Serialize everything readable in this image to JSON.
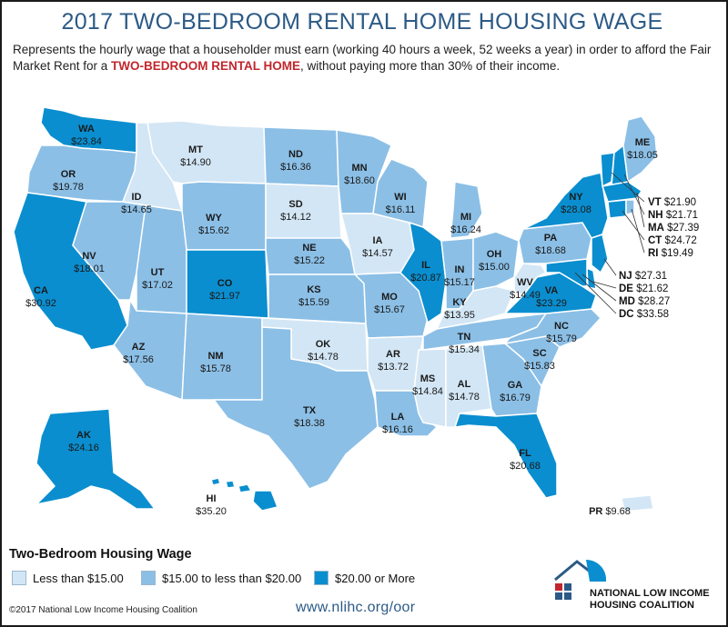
{
  "title": "2017 TWO-BEDROOM RENTAL HOME HOUSING WAGE",
  "subtitle": {
    "part1": "Represents the hourly wage that a householder must earn (working 40 hours a week, 52 weeks a year) in order to afford the Fair Market Rent for a ",
    "highlight": "TWO-BEDROOM RENTAL HOME",
    "part2": ", without paying more than 30% of their income."
  },
  "colors": {
    "low": "#d3e6f5",
    "mid": "#8bbfe6",
    "high": "#0a8ecf",
    "border": "#ffffff",
    "title": "#2c5a86",
    "highlight": "#c1272d"
  },
  "states": [
    {
      "code": "WA",
      "wage": "$23.84"
    },
    {
      "code": "OR",
      "wage": "$19.78"
    },
    {
      "code": "CA",
      "wage": "$30.92"
    },
    {
      "code": "NV",
      "wage": "$18.01"
    },
    {
      "code": "ID",
      "wage": "$14.65"
    },
    {
      "code": "MT",
      "wage": "$14.90"
    },
    {
      "code": "WY",
      "wage": "$15.62"
    },
    {
      "code": "UT",
      "wage": "$17.02"
    },
    {
      "code": "AZ",
      "wage": "$17.56"
    },
    {
      "code": "CO",
      "wage": "$21.97"
    },
    {
      "code": "NM",
      "wage": "$15.78"
    },
    {
      "code": "ND",
      "wage": "$16.36"
    },
    {
      "code": "SD",
      "wage": "$14.12"
    },
    {
      "code": "NE",
      "wage": "$15.22"
    },
    {
      "code": "KS",
      "wage": "$15.59"
    },
    {
      "code": "OK",
      "wage": "$14.78"
    },
    {
      "code": "TX",
      "wage": "$18.38"
    },
    {
      "code": "MN",
      "wage": "$18.60"
    },
    {
      "code": "IA",
      "wage": "$14.57"
    },
    {
      "code": "MO",
      "wage": "$15.67"
    },
    {
      "code": "AR",
      "wage": "$13.72"
    },
    {
      "code": "LA",
      "wage": "$16.16"
    },
    {
      "code": "WI",
      "wage": "$16.11"
    },
    {
      "code": "IL",
      "wage": "$20.87"
    },
    {
      "code": "MI",
      "wage": "$16.24"
    },
    {
      "code": "IN",
      "wage": "$15.17"
    },
    {
      "code": "OH",
      "wage": "$15.00"
    },
    {
      "code": "KY",
      "wage": "$13.95"
    },
    {
      "code": "TN",
      "wage": "$15.34"
    },
    {
      "code": "MS",
      "wage": "$14.84"
    },
    {
      "code": "AL",
      "wage": "$14.78"
    },
    {
      "code": "GA",
      "wage": "$16.79"
    },
    {
      "code": "FL",
      "wage": "$20.68"
    },
    {
      "code": "SC",
      "wage": "$15.83"
    },
    {
      "code": "NC",
      "wage": "$15.79"
    },
    {
      "code": "VA",
      "wage": "$23.29"
    },
    {
      "code": "WV",
      "wage": "$14.49"
    },
    {
      "code": "PA",
      "wage": "$18.68"
    },
    {
      "code": "NY",
      "wage": "$28.08"
    },
    {
      "code": "ME",
      "wage": "$18.05"
    },
    {
      "code": "AK",
      "wage": "$24.16"
    },
    {
      "code": "HI",
      "wage": "$35.20"
    },
    {
      "code": "PR",
      "wage": "$9.68"
    }
  ],
  "northeast_list": [
    {
      "code": "VT",
      "wage": "$21.90"
    },
    {
      "code": "NH",
      "wage": "$21.71"
    },
    {
      "code": "MA",
      "wage": "$27.39"
    },
    {
      "code": "CT",
      "wage": "$24.72"
    },
    {
      "code": "RI",
      "wage": "$19.49"
    }
  ],
  "midatlantic_list": [
    {
      "code": "NJ",
      "wage": "$27.31"
    },
    {
      "code": "DE",
      "wage": "$21.62"
    },
    {
      "code": "MD",
      "wage": "$28.27"
    },
    {
      "code": "DC",
      "wage": "$33.58"
    }
  ],
  "legend": {
    "title": "Two-Bedroom Housing Wage",
    "items": [
      {
        "label": "Less than $15.00",
        "color": "#d3e6f5"
      },
      {
        "label": "$15.00 to less than $20.00",
        "color": "#8bbfe6"
      },
      {
        "label": "$20.00 or More",
        "color": "#0a8ecf"
      }
    ]
  },
  "footer": {
    "copyright": "©2017 National Low Income Housing Coalition",
    "url": "www.nlihc.org/oor",
    "org_line1": "NATIONAL LOW INCOME",
    "org_line2": "HOUSING COALITION"
  }
}
